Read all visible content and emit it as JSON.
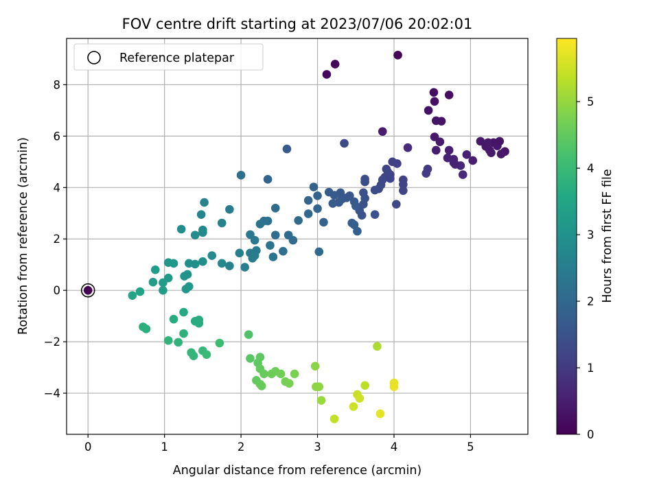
{
  "chart_data": {
    "type": "scatter",
    "title": "FOV centre drift starting at 2023/07/06 20:02:01",
    "xlabel": "Angular distance from reference (arcmin)",
    "ylabel": "Rotation from reference (arcmin)",
    "xlim": [
      -0.28,
      5.75
    ],
    "ylim": [
      -5.6,
      9.8
    ],
    "xticks": [
      0,
      1,
      2,
      3,
      4,
      5
    ],
    "yticks": [
      -4,
      -2,
      0,
      2,
      4,
      6,
      8
    ],
    "grid": true,
    "colormap": "viridis",
    "colorbar": {
      "label": "Hours from first FF file",
      "range": [
        0,
        5.95
      ],
      "ticks": [
        0,
        1,
        2,
        3,
        4,
        5
      ]
    },
    "legend": {
      "placement": "upper-left",
      "entries": [
        {
          "label": "Reference platepar",
          "marker": "hollow-circle"
        }
      ]
    },
    "reference_point": {
      "x": 0,
      "y": 0
    },
    "points": [
      [
        0.0,
        0.0,
        0.0
      ],
      [
        4.05,
        9.15,
        0.05
      ],
      [
        3.23,
        8.8,
        0.1
      ],
      [
        3.12,
        8.4,
        0.12
      ],
      [
        4.52,
        7.7,
        0.2
      ],
      [
        4.72,
        7.6,
        0.22
      ],
      [
        4.53,
        7.35,
        0.25
      ],
      [
        4.45,
        7.0,
        0.28
      ],
      [
        4.55,
        6.6,
        0.3
      ],
      [
        4.62,
        6.58,
        0.32
      ],
      [
        3.85,
        6.18,
        0.45
      ],
      [
        4.53,
        5.97,
        0.4
      ],
      [
        4.6,
        5.78,
        0.42
      ],
      [
        4.55,
        5.45,
        0.45
      ],
      [
        4.72,
        5.45,
        0.5
      ],
      [
        4.7,
        5.15,
        0.55
      ],
      [
        4.78,
        5.1,
        0.6
      ],
      [
        4.8,
        4.9,
        0.62
      ],
      [
        4.87,
        4.85,
        0.65
      ],
      [
        4.78,
        4.97,
        0.58
      ],
      [
        4.95,
        5.28,
        0.55
      ],
      [
        5.03,
        5.05,
        0.5
      ],
      [
        4.9,
        4.5,
        0.68
      ],
      [
        5.13,
        5.8,
        0.35
      ],
      [
        5.2,
        5.6,
        0.38
      ],
      [
        5.25,
        5.45,
        0.4
      ],
      [
        5.3,
        5.75,
        0.32
      ],
      [
        5.35,
        5.62,
        0.36
      ],
      [
        5.38,
        5.8,
        0.3
      ],
      [
        5.45,
        5.4,
        0.34
      ],
      [
        5.4,
        5.3,
        0.38
      ],
      [
        5.27,
        5.35,
        0.42
      ],
      [
        5.23,
        5.75,
        0.4
      ],
      [
        4.18,
        5.55,
        0.75
      ],
      [
        3.35,
        5.72,
        1.35
      ],
      [
        2.6,
        5.5,
        1.7
      ],
      [
        4.44,
        4.72,
        1.0
      ],
      [
        4.42,
        4.55,
        1.05
      ],
      [
        3.98,
        5.0,
        1.1
      ],
      [
        4.04,
        4.93,
        1.12
      ],
      [
        3.9,
        4.72,
        1.15
      ],
      [
        3.95,
        4.5,
        1.17
      ],
      [
        3.88,
        4.4,
        1.2
      ],
      [
        3.95,
        4.35,
        1.22
      ],
      [
        3.92,
        4.6,
        1.25
      ],
      [
        3.85,
        4.3,
        1.27
      ],
      [
        3.83,
        4.1,
        1.3
      ],
      [
        3.8,
        3.95,
        1.32
      ],
      [
        3.75,
        3.9,
        1.35
      ],
      [
        3.62,
        4.33,
        1.4
      ],
      [
        3.62,
        4.22,
        1.42
      ],
      [
        3.6,
        3.8,
        1.45
      ],
      [
        3.62,
        3.58,
        1.48
      ],
      [
        3.6,
        3.35,
        1.5
      ],
      [
        3.55,
        3.1,
        1.52
      ],
      [
        3.58,
        2.92,
        1.55
      ],
      [
        3.75,
        2.95,
        1.5
      ],
      [
        4.12,
        4.3,
        1.15
      ],
      [
        4.12,
        4.12,
        1.18
      ],
      [
        4.12,
        3.88,
        1.2
      ],
      [
        4.03,
        3.35,
        1.3
      ],
      [
        3.42,
        3.68,
        1.6
      ],
      [
        3.48,
        3.45,
        1.65
      ],
      [
        3.5,
        3.28,
        1.7
      ],
      [
        3.45,
        2.62,
        1.75
      ],
      [
        3.48,
        2.55,
        1.78
      ],
      [
        3.52,
        2.3,
        1.8
      ],
      [
        3.38,
        3.6,
        1.6
      ],
      [
        3.3,
        3.8,
        1.62
      ],
      [
        3.32,
        3.55,
        1.65
      ],
      [
        3.28,
        3.42,
        1.68
      ],
      [
        3.22,
        3.7,
        1.7
      ],
      [
        3.2,
        3.38,
        1.72
      ],
      [
        3.15,
        3.82,
        1.68
      ],
      [
        3.08,
        2.65,
        1.85
      ],
      [
        3.0,
        3.68,
        1.85
      ],
      [
        3.0,
        3.18,
        1.9
      ],
      [
        2.95,
        4.02,
        1.88
      ],
      [
        2.88,
        3.5,
        1.92
      ],
      [
        2.88,
        2.98,
        1.95
      ],
      [
        3.02,
        1.5,
        2.0
      ],
      [
        2.75,
        2.72,
        2.05
      ],
      [
        2.68,
        1.95,
        2.1
      ],
      [
        2.62,
        2.15,
        2.12
      ],
      [
        2.55,
        1.52,
        2.15
      ],
      [
        2.45,
        2.15,
        2.15
      ],
      [
        2.45,
        3.2,
        2.05
      ],
      [
        2.35,
        2.7,
        2.2
      ],
      [
        2.3,
        2.7,
        2.22
      ],
      [
        2.25,
        2.58,
        2.25
      ],
      [
        2.38,
        1.75,
        2.25
      ],
      [
        2.42,
        1.3,
        2.3
      ],
      [
        2.35,
        4.32,
        1.9
      ],
      [
        2.0,
        4.48,
        2.2
      ],
      [
        2.12,
        2.17,
        2.35
      ],
      [
        2.18,
        1.95,
        2.4
      ],
      [
        2.2,
        1.55,
        2.42
      ],
      [
        2.18,
        1.35,
        2.45
      ],
      [
        2.12,
        1.45,
        2.45
      ],
      [
        2.15,
        1.25,
        2.48
      ],
      [
        2.05,
        0.9,
        2.5
      ],
      [
        1.98,
        1.45,
        2.55
      ],
      [
        1.85,
        0.95,
        2.6
      ],
      [
        1.85,
        3.15,
        2.45
      ],
      [
        1.75,
        2.62,
        2.6
      ],
      [
        1.75,
        1.05,
        2.75
      ],
      [
        1.62,
        1.35,
        2.8
      ],
      [
        1.52,
        3.42,
        2.65
      ],
      [
        1.5,
        2.35,
        2.75
      ],
      [
        1.48,
        2.95,
        2.7
      ],
      [
        1.5,
        2.25,
        2.8
      ],
      [
        1.5,
        1.12,
        2.9
      ],
      [
        1.4,
        2.15,
        2.8
      ],
      [
        1.4,
        1.02,
        2.95
      ],
      [
        1.32,
        1.05,
        2.95
      ],
      [
        1.22,
        2.38,
        2.85
      ],
      [
        1.3,
        0.62,
        3.05
      ],
      [
        1.26,
        0.55,
        3.05
      ],
      [
        1.32,
        0.15,
        3.15
      ],
      [
        1.28,
        0.05,
        3.15
      ],
      [
        1.12,
        1.05,
        3.1
      ],
      [
        1.05,
        1.08,
        3.1
      ],
      [
        1.05,
        0.48,
        3.2
      ],
      [
        0.98,
        0.3,
        3.25
      ],
      [
        0.88,
        0.8,
        3.25
      ],
      [
        0.85,
        0.32,
        3.3
      ],
      [
        0.98,
        0.0,
        3.3
      ],
      [
        0.68,
        -0.05,
        3.45
      ],
      [
        0.58,
        -0.2,
        3.5
      ],
      [
        1.45,
        -1.15,
        3.65
      ],
      [
        1.4,
        -1.2,
        3.65
      ],
      [
        1.45,
        -1.28,
        3.7
      ],
      [
        1.25,
        -0.85,
        3.6
      ],
      [
        1.12,
        -1.12,
        3.65
      ],
      [
        0.72,
        -1.42,
        3.75
      ],
      [
        0.76,
        -1.5,
        3.75
      ],
      [
        1.05,
        -1.95,
        3.85
      ],
      [
        1.18,
        -2.02,
        3.85
      ],
      [
        1.25,
        -1.68,
        3.8
      ],
      [
        1.35,
        -2.42,
        3.9
      ],
      [
        1.38,
        -2.55,
        3.9
      ],
      [
        1.5,
        -2.35,
        3.95
      ],
      [
        1.55,
        -2.5,
        4.0
      ],
      [
        1.72,
        -2.05,
        4.05
      ],
      [
        2.1,
        -1.72,
        4.3
      ],
      [
        2.12,
        -2.65,
        4.4
      ],
      [
        2.22,
        -2.82,
        4.45
      ],
      [
        2.25,
        -2.6,
        4.45
      ],
      [
        2.25,
        -3.05,
        4.5
      ],
      [
        2.3,
        -3.25,
        4.55
      ],
      [
        2.2,
        -3.5,
        4.5
      ],
      [
        2.25,
        -3.65,
        4.55
      ],
      [
        2.27,
        -3.72,
        4.55
      ],
      [
        2.4,
        -3.25,
        4.6
      ],
      [
        2.45,
        -3.15,
        4.62
      ],
      [
        2.52,
        -3.25,
        4.65
      ],
      [
        2.58,
        -3.55,
        4.7
      ],
      [
        2.63,
        -3.62,
        4.72
      ],
      [
        2.7,
        -3.25,
        4.75
      ],
      [
        2.97,
        -2.95,
        4.9
      ],
      [
        2.98,
        -3.75,
        4.95
      ],
      [
        3.02,
        -3.75,
        4.95
      ],
      [
        3.05,
        -4.28,
        5.05
      ],
      [
        3.22,
        -5.0,
        5.4
      ],
      [
        3.47,
        -4.52,
        5.5
      ],
      [
        3.52,
        -4.05,
        5.45
      ],
      [
        3.55,
        -4.2,
        5.5
      ],
      [
        3.62,
        -3.7,
        5.35
      ],
      [
        3.78,
        -2.18,
        5.2
      ],
      [
        3.82,
        -4.8,
        5.7
      ],
      [
        4.0,
        -3.6,
        5.7
      ],
      [
        4.0,
        -3.75,
        5.75
      ]
    ]
  }
}
